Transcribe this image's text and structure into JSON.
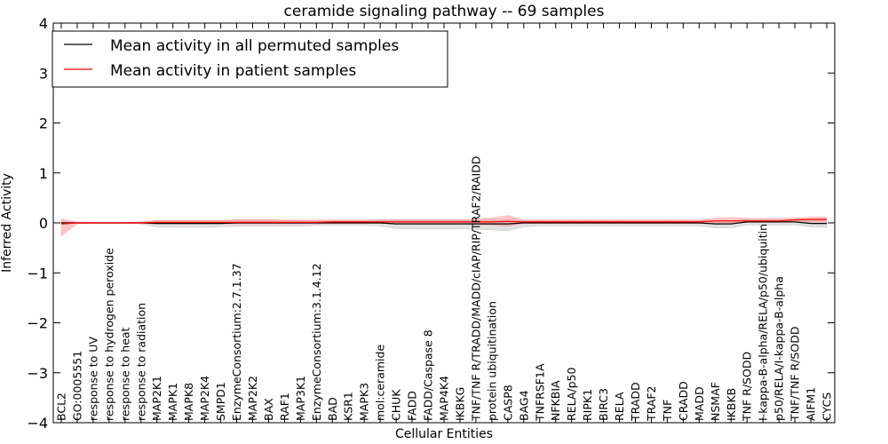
{
  "chart_data": {
    "type": "line",
    "title": "ceramide signaling pathway -- 69 samples",
    "xlabel": "Cellular Entities",
    "ylabel": "Inferred Activity",
    "ylim": [
      -4,
      4
    ],
    "yticks": [
      -4,
      -3,
      -2,
      -1,
      0,
      1,
      2,
      3,
      4
    ],
    "legend_position": "top-left",
    "grid": false,
    "categories": [
      "BCL2",
      "GO:0005551",
      "response to UV",
      "response to hydrogen peroxide",
      "response to heat",
      "response to radiation",
      "MAP2K1",
      "MAPK1",
      "MAPK8",
      "MAP2K4",
      "SMPD1",
      "EnzymeConsortium:2.7.1.37",
      "MAP2K2",
      "BAX",
      "RAF1",
      "MAP3K1",
      "EnzymeConsortium:3.1.4.12",
      "BAD",
      "KSR1",
      "MAPK3",
      "mol:ceramide",
      "CHUK",
      "FADD",
      "FADD/Caspase 8",
      "MAP4K4",
      "IKBKG",
      "TNF/TNF R/TRADD/MADD/cIAP/RIP/TRAF2/RAIDD",
      "protein ubiquitination",
      "CASP8",
      "BAG4",
      "TNFRSF1A",
      "NFKBIA",
      "RELA/p50",
      "RIPK1",
      "BIRC3",
      "RELA",
      "TRADD",
      "TRAF2",
      "TNF",
      "CRADD",
      "MADD",
      "NSMAF",
      "IKBKB",
      "TNF R/SODD",
      "I-kappa-B-alpha/RELA/p50/ubiquitin",
      "p50/RELA/I-kappa-B-alpha",
      "TNF/TNF R/SODD",
      "AIFM1",
      "CYCS"
    ],
    "series": [
      {
        "name": "Mean activity in all permuted samples",
        "color": "#000000",
        "values": [
          0.0,
          0,
          0,
          0,
          0,
          0,
          -0.01,
          -0.01,
          -0.01,
          -0.01,
          -0.01,
          0,
          0,
          0,
          0,
          0,
          0,
          0,
          0,
          0,
          0,
          -0.02,
          -0.02,
          -0.02,
          -0.02,
          -0.02,
          -0.02,
          -0.02,
          -0.02,
          0,
          0,
          0,
          0,
          0,
          0,
          0,
          0,
          0,
          0,
          0,
          0,
          -0.02,
          -0.02,
          0.02,
          0.02,
          0.02,
          0.02,
          -0.01,
          -0.01
        ],
        "band": {
          "color": "#9a9a9a",
          "lower": [
            -0.02,
            -0.01,
            -0.01,
            -0.01,
            -0.01,
            -0.02,
            -0.08,
            -0.09,
            -0.09,
            -0.09,
            -0.08,
            -0.07,
            -0.07,
            -0.07,
            -0.07,
            -0.07,
            -0.05,
            -0.05,
            -0.05,
            -0.05,
            -0.06,
            -0.11,
            -0.12,
            -0.12,
            -0.12,
            -0.12,
            -0.13,
            -0.14,
            -0.16,
            -0.08,
            -0.06,
            -0.06,
            -0.06,
            -0.06,
            -0.06,
            -0.06,
            -0.06,
            -0.06,
            -0.06,
            -0.06,
            -0.06,
            -0.1,
            -0.1,
            -0.04,
            -0.04,
            -0.04,
            -0.04,
            -0.08,
            -0.09
          ],
          "upper": [
            0.02,
            0.01,
            0.01,
            0.01,
            0.01,
            0.02,
            0.05,
            0.05,
            0.05,
            0.05,
            0.05,
            0.06,
            0.06,
            0.06,
            0.05,
            0.05,
            0.04,
            0.04,
            0.04,
            0.04,
            0.05,
            0.05,
            0.05,
            0.05,
            0.05,
            0.05,
            0.05,
            0.06,
            0.06,
            0.05,
            0.05,
            0.05,
            0.05,
            0.05,
            0.05,
            0.05,
            0.05,
            0.05,
            0.05,
            0.05,
            0.05,
            0.05,
            0.05,
            0.07,
            0.07,
            0.07,
            0.07,
            0.06,
            0.06
          ]
        }
      },
      {
        "name": "Mean activity in patient samples",
        "color": "#ff0000",
        "values": [
          -0.02,
          0,
          0,
          0,
          0,
          0,
          0.01,
          0.01,
          0.01,
          0.01,
          0.01,
          0.01,
          0.01,
          0.01,
          0.01,
          0.01,
          0.01,
          0.02,
          0.02,
          0.02,
          0.02,
          0.02,
          0.02,
          0.02,
          0.02,
          0.02,
          0.02,
          0.02,
          0.03,
          0.02,
          0.02,
          0.02,
          0.02,
          0.02,
          0.02,
          0.02,
          0.02,
          0.02,
          0.02,
          0.02,
          0.02,
          0.04,
          0.04,
          0.04,
          0.04,
          0.04,
          0.06,
          0.07,
          0.07
        ],
        "band": {
          "color": "#ff8080",
          "lower": [
            -0.27,
            -0.02,
            -0.01,
            -0.01,
            -0.01,
            -0.01,
            -0.02,
            -0.02,
            -0.02,
            -0.02,
            -0.02,
            -0.02,
            -0.02,
            -0.02,
            -0.02,
            -0.02,
            -0.02,
            -0.01,
            -0.01,
            -0.01,
            -0.01,
            -0.02,
            -0.02,
            -0.02,
            -0.02,
            -0.02,
            -0.03,
            -0.04,
            -0.07,
            -0.01,
            -0.01,
            -0.01,
            -0.01,
            -0.01,
            -0.01,
            -0.01,
            -0.01,
            -0.01,
            -0.01,
            -0.01,
            -0.01,
            0.0,
            0.0,
            0.01,
            0.01,
            0.01,
            0.02,
            0.02,
            0.02
          ],
          "upper": [
            0.08,
            0.02,
            0.01,
            0.01,
            0.01,
            0.02,
            0.05,
            0.05,
            0.05,
            0.05,
            0.05,
            0.07,
            0.07,
            0.07,
            0.06,
            0.06,
            0.06,
            0.06,
            0.06,
            0.06,
            0.07,
            0.07,
            0.07,
            0.07,
            0.07,
            0.07,
            0.08,
            0.1,
            0.15,
            0.06,
            0.06,
            0.06,
            0.06,
            0.06,
            0.06,
            0.06,
            0.06,
            0.06,
            0.06,
            0.06,
            0.06,
            0.1,
            0.11,
            0.09,
            0.09,
            0.09,
            0.1,
            0.12,
            0.12
          ]
        }
      }
    ]
  }
}
